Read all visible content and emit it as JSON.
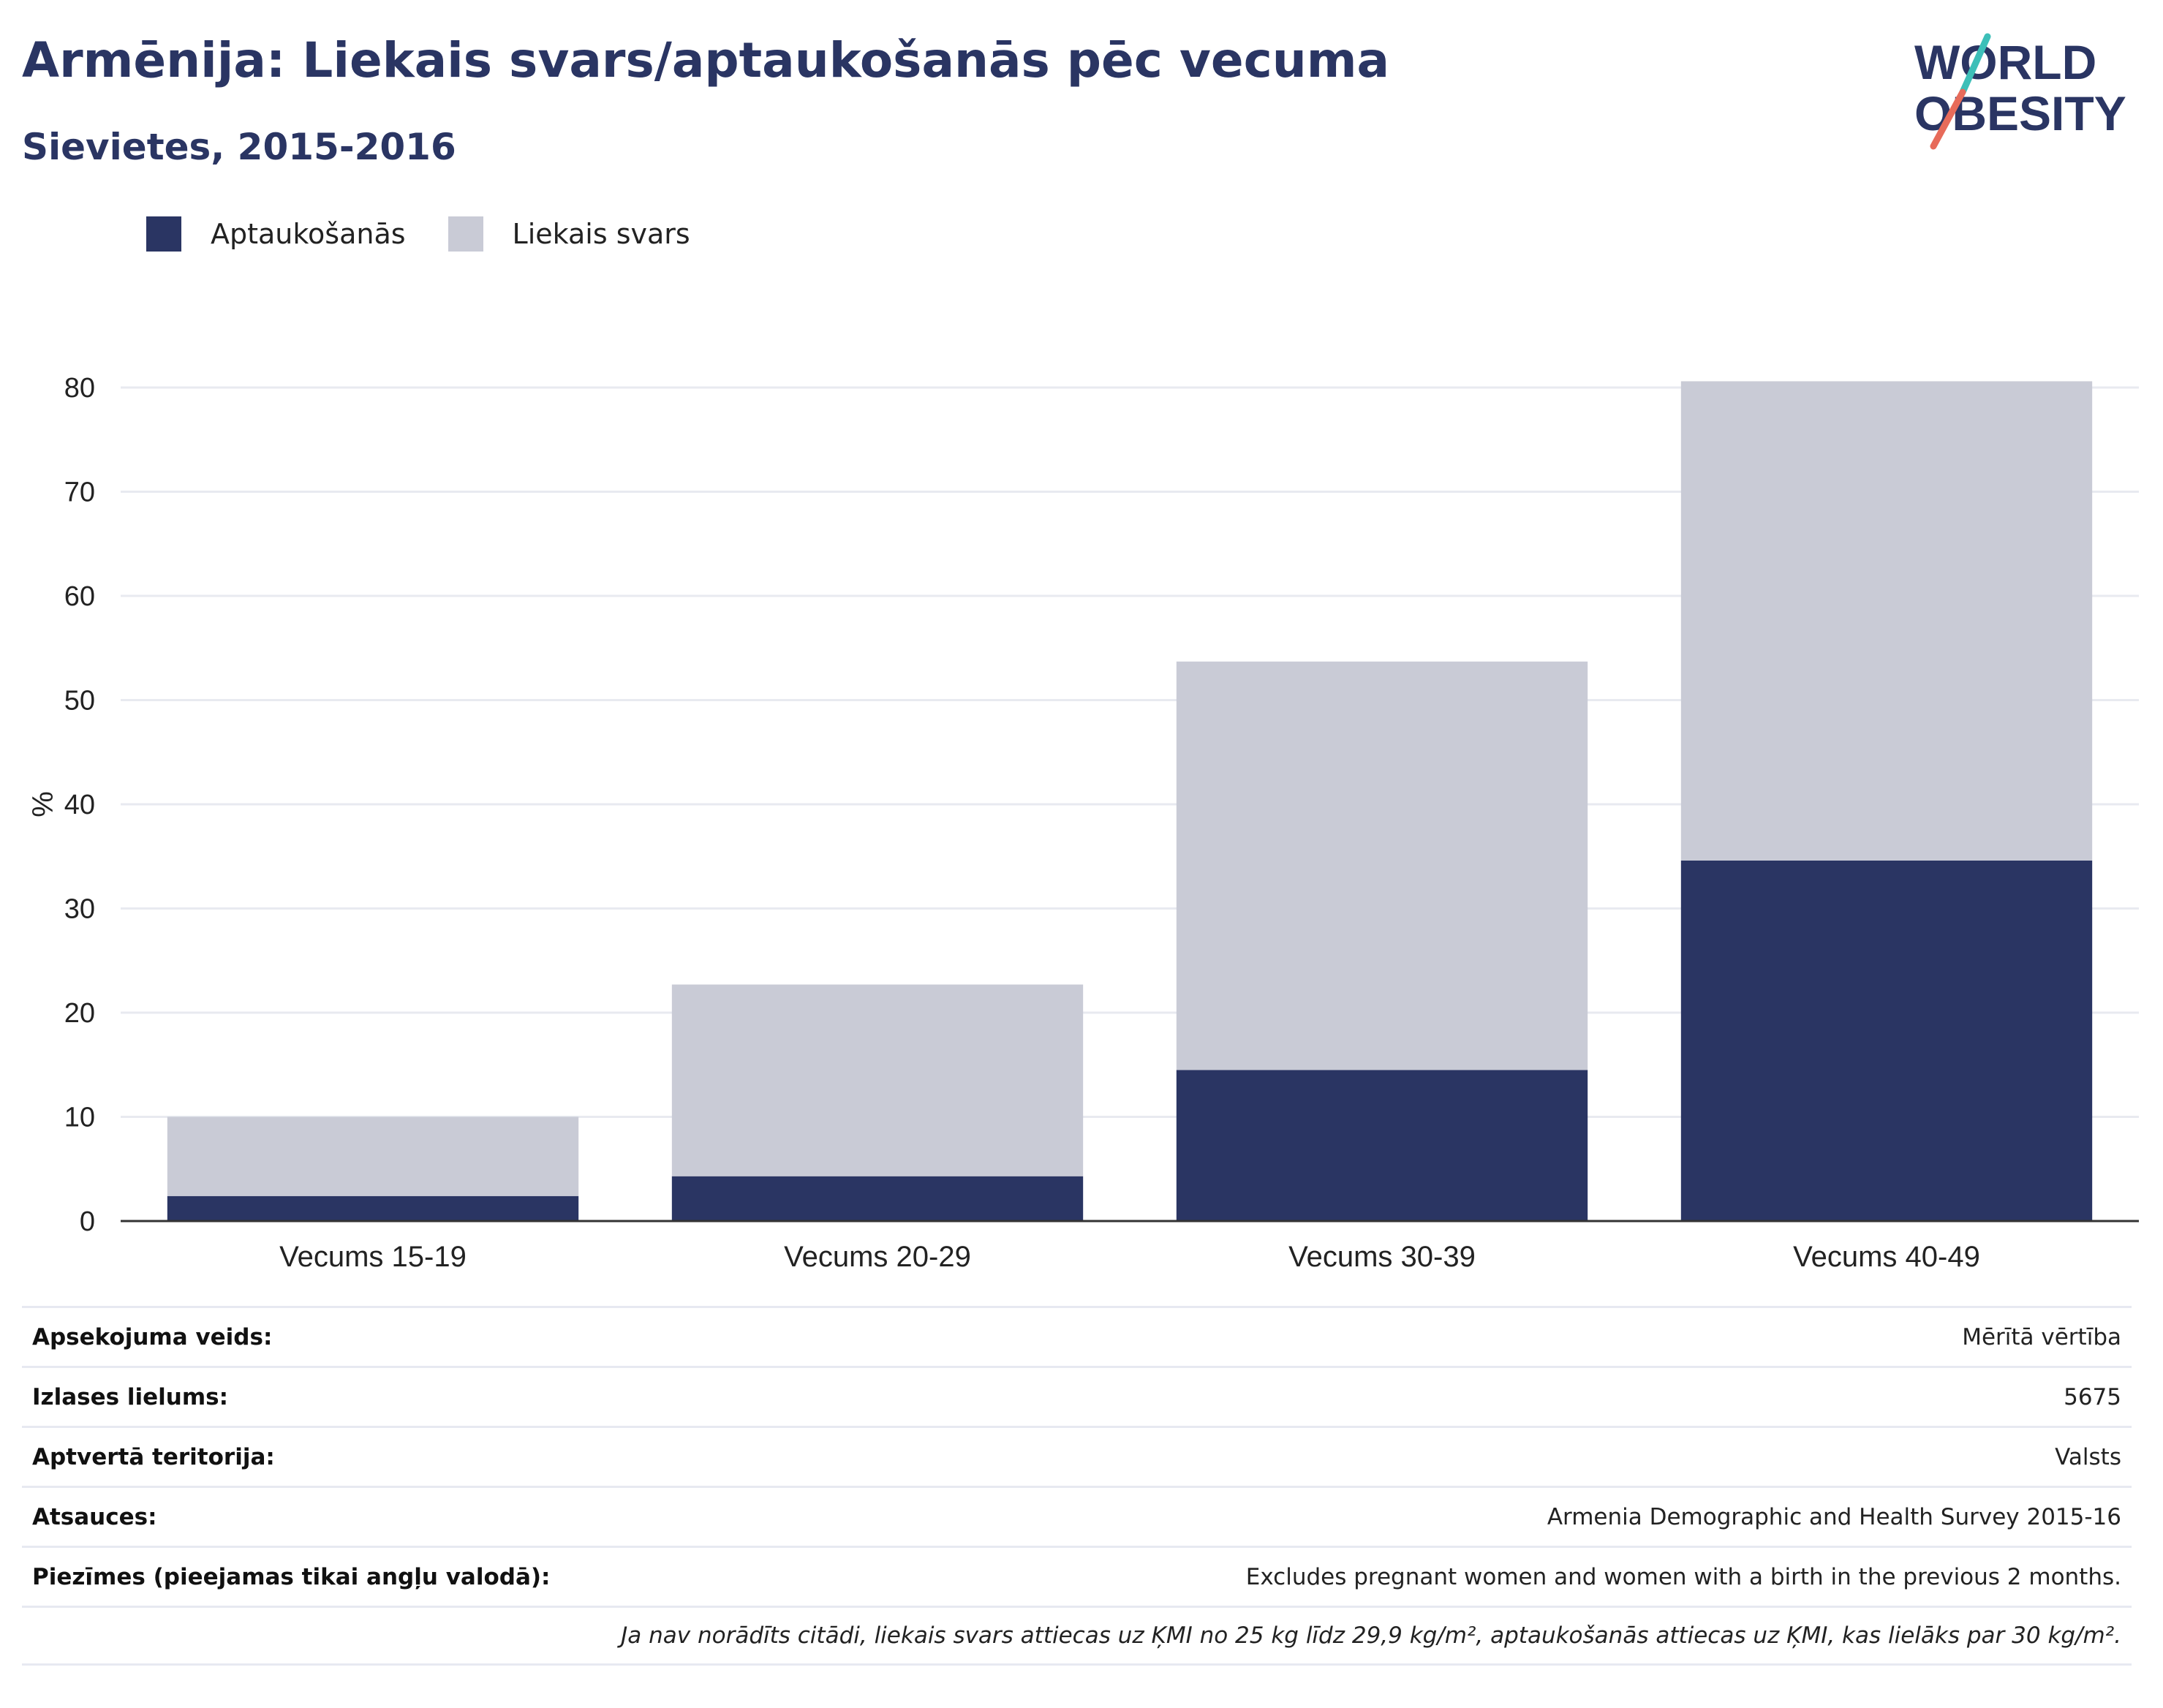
{
  "header": {
    "title": "Armēnija: Liekais svars/aptaukošanās pēc vecuma",
    "subtitle": "Sievietes, 2015-2016"
  },
  "logo": {
    "line1": "WORLD",
    "line2": "OBESITY",
    "colors": {
      "text": "#2a3563",
      "accent_teal": "#3dbfb8",
      "accent_coral": "#e76b5a"
    }
  },
  "colors": {
    "obesity": "#2a3563",
    "overweight": "#c9cbd6",
    "grid": "#e8eaf0",
    "axis": "#333333"
  },
  "chart_data": {
    "type": "bar",
    "stacked": true,
    "categories": [
      "Vecums 15-19",
      "Vecums 20-29",
      "Vecums 30-39",
      "Vecums 40-49"
    ],
    "series": [
      {
        "name": "Aptaukošanās",
        "color": "#2a3563",
        "values": [
          2.4,
          4.3,
          14.5,
          34.6
        ]
      },
      {
        "name": "Liekais svars",
        "color": "#c9cbd6",
        "values": [
          7.6,
          18.4,
          39.2,
          46.0
        ]
      }
    ],
    "ylabel": "%",
    "ylim": [
      0,
      80
    ],
    "yticks": [
      0,
      10,
      20,
      30,
      40,
      50,
      60,
      70,
      80
    ],
    "grid": true,
    "legend_position": "top-left"
  },
  "info": [
    {
      "label": "Apsekojuma veids:",
      "value": "Mērītā vērtība"
    },
    {
      "label": "Izlases lielums:",
      "value": "5675"
    },
    {
      "label": "Aptvertā teritorija:",
      "value": "Valsts"
    },
    {
      "label": "Atsauces:",
      "value": "Armenia Demographic and Health Survey 2015-16"
    },
    {
      "label": "Piezīmes (pieejamas tikai angļu valodā):",
      "value": "Excludes pregnant women and women with a birth in the previous 2 months."
    },
    {
      "label": "",
      "value": "Ja nav norādīts citādi, liekais svars attiecas uz ĶMI no 25 kg līdz 29,9 kg/m², aptaukošanās attiecas uz ĶMI, kas lielāks par 30 kg/m²."
    }
  ]
}
